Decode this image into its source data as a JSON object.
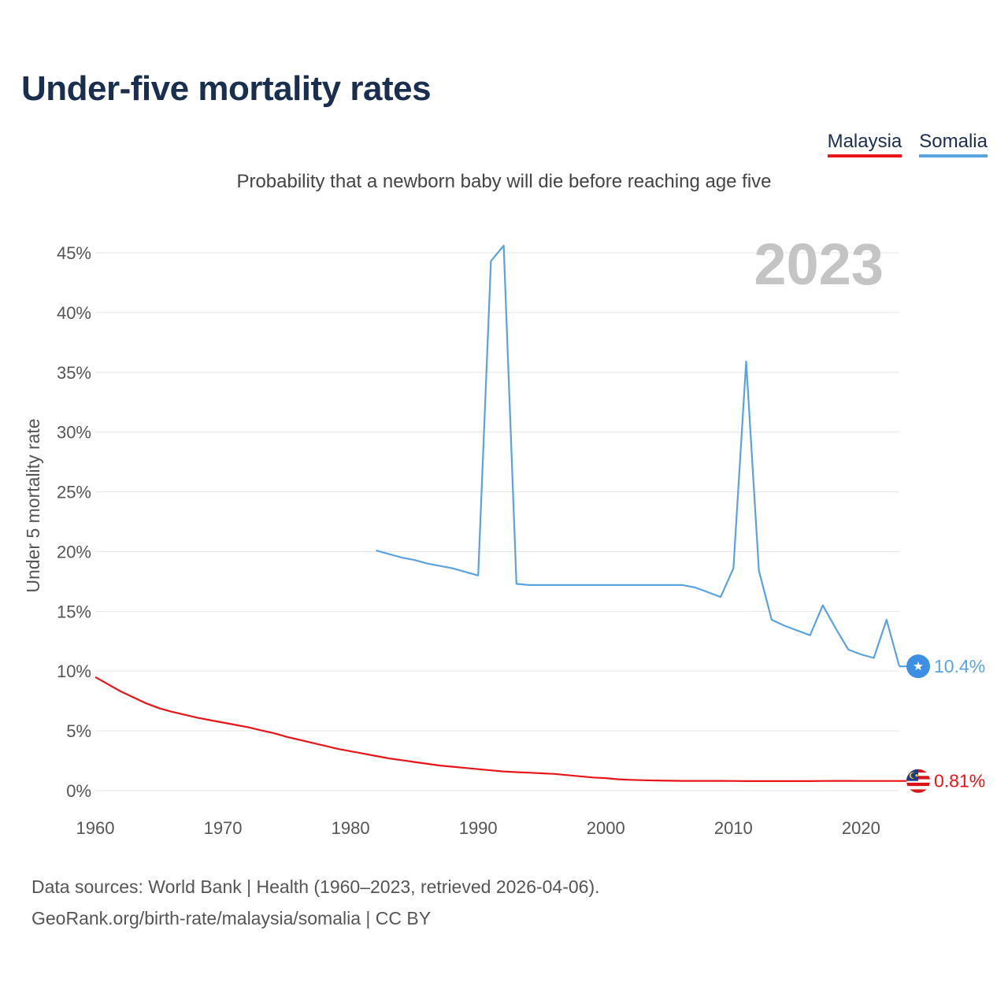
{
  "title": "Under-five mortality rates",
  "subtitle": "Probability that a newborn baby will die before reaching age five",
  "legend": [
    {
      "label": "Malaysia",
      "color": "#e8141a"
    },
    {
      "label": "Somalia",
      "color": "#5aa2e0"
    }
  ],
  "year_overlay": "2023",
  "source": {
    "line1": "Data sources: World Bank | Health (1960–2023, retrieved 2026-04-06).",
    "line2": "GeoRank.org/birth-rate/malaysia/somalia | CC BY"
  },
  "chart_data": {
    "type": "line",
    "title": "Under-five mortality rates",
    "ylabel": "Under 5 mortality rate",
    "xlabel": "",
    "xlim": [
      1960,
      2023
    ],
    "ylim": [
      0,
      45
    ],
    "x_ticks": [
      1960,
      1970,
      1980,
      1990,
      2000,
      2010,
      2020
    ],
    "y_ticks": [
      0,
      5,
      10,
      15,
      20,
      25,
      30,
      35,
      40,
      45
    ],
    "y_tick_labels": [
      "0%",
      "5%",
      "10%",
      "15%",
      "20%",
      "25%",
      "30%",
      "35%",
      "40%",
      "45%"
    ],
    "grid": true,
    "legend_position": "top-right",
    "series": [
      {
        "name": "Malaysia",
        "color": "#e8141a",
        "end_label": "0.81%",
        "flag": "malaysia-flag",
        "points": [
          [
            1960,
            9.5
          ],
          [
            1961,
            8.9
          ],
          [
            1962,
            8.3
          ],
          [
            1963,
            7.8
          ],
          [
            1964,
            7.3
          ],
          [
            1965,
            6.9
          ],
          [
            1966,
            6.6
          ],
          [
            1967,
            6.35
          ],
          [
            1968,
            6.1
          ],
          [
            1969,
            5.9
          ],
          [
            1970,
            5.7
          ],
          [
            1971,
            5.5
          ],
          [
            1972,
            5.3
          ],
          [
            1973,
            5.05
          ],
          [
            1974,
            4.8
          ],
          [
            1975,
            4.5
          ],
          [
            1976,
            4.25
          ],
          [
            1977,
            4.0
          ],
          [
            1978,
            3.75
          ],
          [
            1979,
            3.5
          ],
          [
            1980,
            3.3
          ],
          [
            1981,
            3.1
          ],
          [
            1982,
            2.9
          ],
          [
            1983,
            2.7
          ],
          [
            1984,
            2.55
          ],
          [
            1985,
            2.4
          ],
          [
            1986,
            2.25
          ],
          [
            1987,
            2.1
          ],
          [
            1988,
            2.0
          ],
          [
            1989,
            1.9
          ],
          [
            1990,
            1.8
          ],
          [
            1991,
            1.7
          ],
          [
            1992,
            1.6
          ],
          [
            1993,
            1.55
          ],
          [
            1994,
            1.5
          ],
          [
            1995,
            1.45
          ],
          [
            1996,
            1.4
          ],
          [
            1997,
            1.3
          ],
          [
            1998,
            1.2
          ],
          [
            1999,
            1.1
          ],
          [
            2000,
            1.05
          ],
          [
            2001,
            0.95
          ],
          [
            2002,
            0.9
          ],
          [
            2003,
            0.87
          ],
          [
            2004,
            0.85
          ],
          [
            2005,
            0.83
          ],
          [
            2006,
            0.82
          ],
          [
            2007,
            0.82
          ],
          [
            2008,
            0.82
          ],
          [
            2009,
            0.82
          ],
          [
            2010,
            0.81
          ],
          [
            2011,
            0.8
          ],
          [
            2012,
            0.8
          ],
          [
            2013,
            0.8
          ],
          [
            2014,
            0.8
          ],
          [
            2015,
            0.8
          ],
          [
            2016,
            0.8
          ],
          [
            2017,
            0.81
          ],
          [
            2018,
            0.82
          ],
          [
            2019,
            0.82
          ],
          [
            2020,
            0.81
          ],
          [
            2021,
            0.81
          ],
          [
            2022,
            0.81
          ],
          [
            2023,
            0.81
          ]
        ]
      },
      {
        "name": "Somalia",
        "color": "#5aa2e0",
        "end_label": "10.4%",
        "flag": "somalia-flag",
        "points": [
          [
            1982,
            20.1
          ],
          [
            1984,
            19.5
          ],
          [
            1985,
            19.3
          ],
          [
            1986,
            19.0
          ],
          [
            1988,
            18.6
          ],
          [
            1990,
            18.0
          ],
          [
            1991,
            44.3
          ],
          [
            1992,
            45.6
          ],
          [
            1993,
            17.3
          ],
          [
            1994,
            17.2
          ],
          [
            1995,
            17.2
          ],
          [
            1996,
            17.2
          ],
          [
            1997,
            17.2
          ],
          [
            1998,
            17.2
          ],
          [
            1999,
            17.2
          ],
          [
            2000,
            17.2
          ],
          [
            2001,
            17.2
          ],
          [
            2002,
            17.2
          ],
          [
            2003,
            17.2
          ],
          [
            2004,
            17.2
          ],
          [
            2005,
            17.2
          ],
          [
            2006,
            17.2
          ],
          [
            2007,
            17.0
          ],
          [
            2008,
            16.6
          ],
          [
            2009,
            16.2
          ],
          [
            2010,
            18.6
          ],
          [
            2011,
            35.9
          ],
          [
            2012,
            18.4
          ],
          [
            2013,
            14.3
          ],
          [
            2014,
            13.8
          ],
          [
            2015,
            13.4
          ],
          [
            2016,
            13.0
          ],
          [
            2017,
            15.5
          ],
          [
            2018,
            13.6
          ],
          [
            2019,
            11.8
          ],
          [
            2020,
            11.4
          ],
          [
            2021,
            11.1
          ],
          [
            2022,
            14.3
          ],
          [
            2023,
            10.4
          ]
        ]
      }
    ]
  }
}
